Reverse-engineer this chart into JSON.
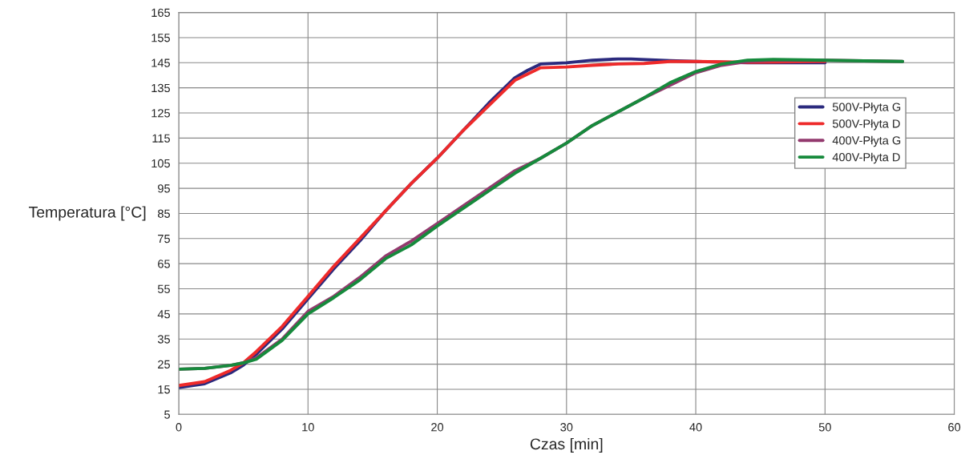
{
  "chart_data": {
    "type": "line",
    "xlabel": "Czas [min]",
    "ylabel": "Temperatura [°C]",
    "xlim": [
      0,
      60
    ],
    "xticks": [
      0,
      10,
      20,
      30,
      40,
      50,
      60
    ],
    "ylim": [
      5,
      165
    ],
    "yticks": [
      5,
      15,
      25,
      35,
      45,
      55,
      65,
      75,
      85,
      95,
      105,
      115,
      125,
      135,
      145,
      155,
      165
    ],
    "grid": true,
    "legend": "right",
    "line_style": "solid",
    "marker": "none",
    "series": [
      {
        "name": "500V-Płyta G",
        "color": "#2b2a7e",
        "x": [
          0,
          2,
          4,
          5,
          6,
          8,
          10,
          12,
          14,
          16,
          18,
          20,
          22,
          24,
          26,
          27,
          28,
          30,
          32,
          34,
          35,
          38,
          40,
          44,
          50
        ],
        "values": [
          15.7,
          17.2,
          21.5,
          24.6,
          29,
          39,
          51,
          63,
          74,
          86,
          97,
          107,
          118,
          129,
          139,
          142,
          144.5,
          145,
          146,
          146.5,
          146.5,
          145.8,
          145.5,
          145,
          145
        ]
      },
      {
        "name": "500V-Płyta D",
        "color": "#ee2a2a",
        "x": [
          0,
          2,
          4,
          5,
          6,
          8,
          10,
          12,
          14,
          16,
          18,
          20,
          22,
          24,
          26,
          28,
          30,
          32,
          34,
          36,
          38,
          40,
          44,
          50
        ],
        "values": [
          16.5,
          18,
          22.5,
          25.5,
          30,
          40,
          52,
          64,
          75,
          86,
          97,
          107,
          118,
          128,
          138,
          143,
          143.3,
          144,
          144.5,
          144.7,
          145.5,
          145.5,
          145.2,
          145.5
        ]
      },
      {
        "name": "400V-Płyta G",
        "color": "#933a6e",
        "x": [
          0,
          2,
          4,
          5,
          6,
          8,
          10,
          12,
          14,
          16,
          18,
          20,
          22,
          24,
          26,
          28,
          30,
          32,
          34,
          36,
          38,
          40,
          42,
          44,
          46,
          50,
          56
        ],
        "values": [
          23,
          23.3,
          24.5,
          25.5,
          27.5,
          35,
          46,
          52,
          59.5,
          68,
          74,
          81,
          88,
          95,
          102,
          107,
          113,
          120,
          125.5,
          131,
          136,
          141,
          144,
          145.5,
          146,
          146,
          145.5
        ]
      },
      {
        "name": "400V-Płyta D",
        "color": "#168a3c",
        "x": [
          0,
          2,
          4,
          5,
          6,
          8,
          10,
          12,
          14,
          16,
          18,
          20,
          22,
          24,
          26,
          28,
          30,
          32,
          34,
          36,
          38,
          40,
          42,
          44,
          46,
          50,
          56
        ],
        "values": [
          23,
          23.3,
          24.5,
          25.5,
          27,
          34.5,
          45,
          51.5,
          58.5,
          67,
          72.5,
          80,
          87,
          94,
          101,
          107,
          113,
          120,
          125.5,
          131,
          137,
          141.5,
          144.5,
          146,
          146.3,
          146,
          145.5
        ]
      }
    ]
  }
}
